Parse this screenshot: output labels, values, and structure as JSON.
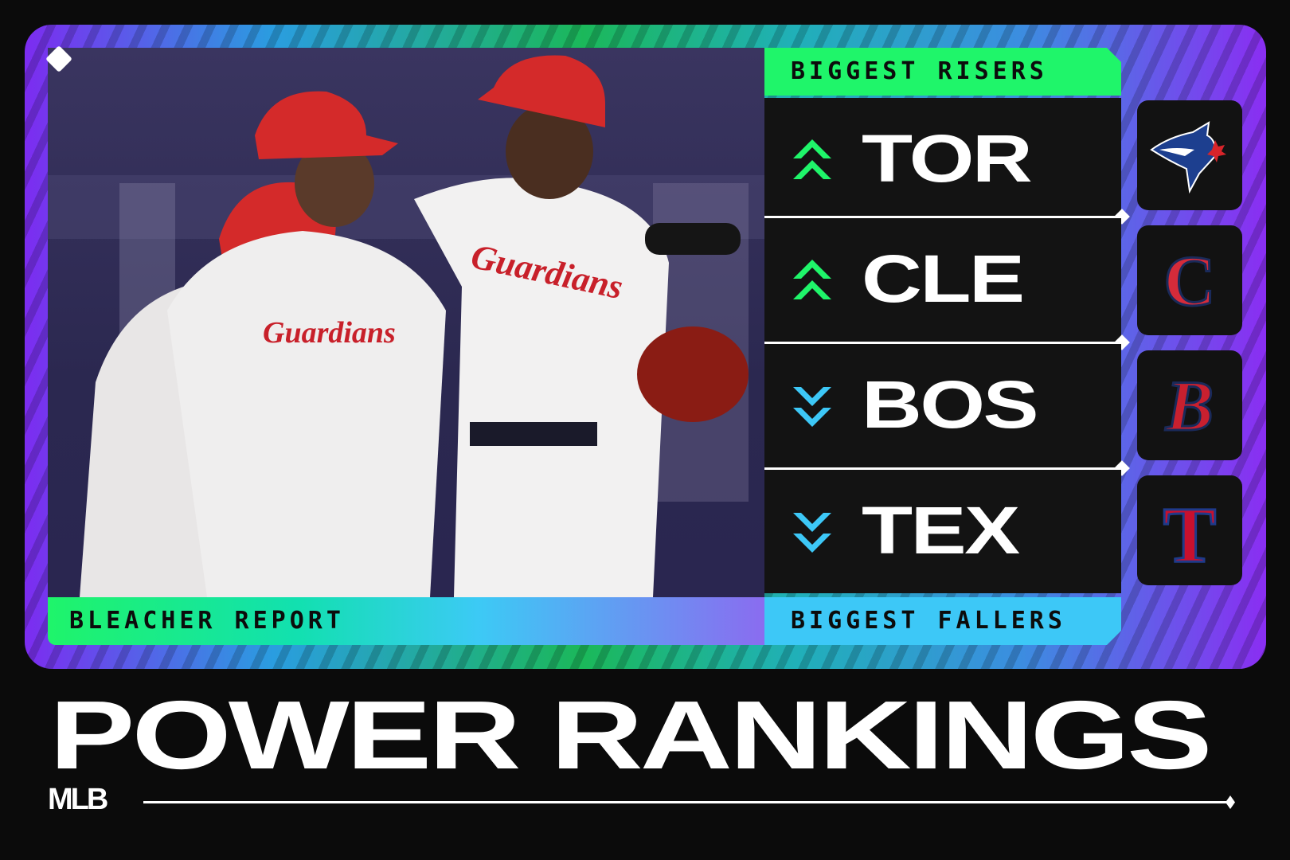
{
  "brand": "BLEACHER REPORT",
  "title": "POWER RANKINGS",
  "subtitle": "MLB",
  "risers": {
    "label": "BIGGEST RISERS",
    "color": "#1ff56a",
    "teams": [
      {
        "abbr": "TOR",
        "direction": "up",
        "logo": "blue-jays-logo"
      },
      {
        "abbr": "CLE",
        "direction": "up",
        "logo": "guardians-c-logo"
      }
    ]
  },
  "fallers": {
    "label": "BIGGEST FALLERS",
    "color": "#3dc8f7",
    "teams": [
      {
        "abbr": "BOS",
        "direction": "down",
        "logo": "red-sox-b-logo"
      },
      {
        "abbr": "TEX",
        "direction": "down",
        "logo": "rangers-t-logo"
      }
    ]
  },
  "logos": {
    "cle": "C",
    "bos": "B",
    "tex": "T"
  }
}
